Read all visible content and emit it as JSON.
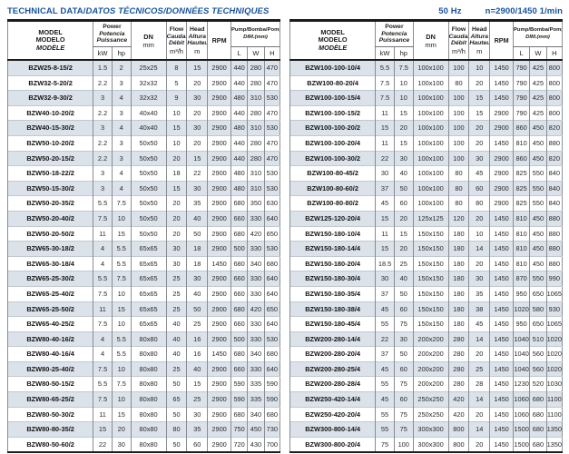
{
  "title": {
    "main": "TECHNICAL DATA/",
    "translations": "DATOS TÉCNICOS/DONNÉES TECHNIQUES",
    "frequency": "50 Hz",
    "speed": "n=2900/1450 1/min"
  },
  "colors": {
    "accent_blue": "#15549e",
    "row_shade": "#dbe2e9"
  },
  "table_header": {
    "model": [
      "MODEL",
      "MODELO",
      "MODÈLE"
    ],
    "power": [
      "Power",
      "Potencia",
      "Puissance"
    ],
    "dn": "DN",
    "flow": [
      "Flow",
      "Caudal",
      "Débit"
    ],
    "head": [
      "Head",
      "Altura",
      "Hauteur"
    ],
    "rpm": "RPM",
    "pump_dim": [
      "Pump/Bomba/Pompe",
      "DIM.(mm)"
    ],
    "units": {
      "kw": "kW",
      "hp": "hp",
      "mm": "mm",
      "flow": "m³/h",
      "head": "m",
      "l": "L",
      "w": "W",
      "h": "H"
    }
  },
  "left_table": {
    "rows": [
      [
        "BZW25-8-15/2",
        "1.5",
        "2",
        "25x25",
        "8",
        "15",
        "2900",
        "440",
        "280",
        "470"
      ],
      [
        "BZW32-5-20/2",
        "2.2",
        "3",
        "32x32",
        "5",
        "20",
        "2900",
        "440",
        "280",
        "470"
      ],
      [
        "BZW32-9-30/2",
        "3",
        "4",
        "32x32",
        "9",
        "30",
        "2900",
        "480",
        "310",
        "530"
      ],
      [
        "BZW40-10-20/2",
        "2.2",
        "3",
        "40x40",
        "10",
        "20",
        "2900",
        "440",
        "280",
        "470"
      ],
      [
        "BZW40-15-30/2",
        "3",
        "4",
        "40x40",
        "15",
        "30",
        "2900",
        "480",
        "310",
        "530"
      ],
      [
        "BZW50-10-20/2",
        "2.2",
        "3",
        "50x50",
        "10",
        "20",
        "2900",
        "440",
        "280",
        "470"
      ],
      [
        "BZW50-20-15/2",
        "2.2",
        "3",
        "50x50",
        "20",
        "15",
        "2900",
        "440",
        "280",
        "470"
      ],
      [
        "BZW50-18-22/2",
        "3",
        "4",
        "50x50",
        "18",
        "22",
        "2900",
        "480",
        "310",
        "530"
      ],
      [
        "BZW50-15-30/2",
        "3",
        "4",
        "50x50",
        "15",
        "30",
        "2900",
        "480",
        "310",
        "530"
      ],
      [
        "BZW50-20-35/2",
        "5.5",
        "7.5",
        "50x50",
        "20",
        "35",
        "2900",
        "680",
        "350",
        "630"
      ],
      [
        "BZW50-20-40/2",
        "7.5",
        "10",
        "50x50",
        "20",
        "40",
        "2900",
        "660",
        "330",
        "640"
      ],
      [
        "BZW50-20-50/2",
        "11",
        "15",
        "50x50",
        "20",
        "50",
        "2900",
        "680",
        "420",
        "650"
      ],
      [
        "BZW65-30-18/2",
        "4",
        "5.5",
        "65x65",
        "30",
        "18",
        "2900",
        "500",
        "330",
        "530"
      ],
      [
        "BZW65-30-18/4",
        "4",
        "5.5",
        "65x65",
        "30",
        "18",
        "1450",
        "680",
        "340",
        "680"
      ],
      [
        "BZW65-25-30/2",
        "5.5",
        "7.5",
        "65x65",
        "25",
        "30",
        "2900",
        "660",
        "330",
        "640"
      ],
      [
        "BZW65-25-40/2",
        "7.5",
        "10",
        "65x65",
        "25",
        "40",
        "2900",
        "660",
        "330",
        "640"
      ],
      [
        "BZW65-25-50/2",
        "11",
        "15",
        "65x65",
        "25",
        "50",
        "2900",
        "680",
        "420",
        "650"
      ],
      [
        "BZW65-40-25/2",
        "7.5",
        "10",
        "65x65",
        "40",
        "25",
        "2900",
        "660",
        "330",
        "640"
      ],
      [
        "BZW80-40-16/2",
        "4",
        "5.5",
        "80x80",
        "40",
        "16",
        "2900",
        "500",
        "330",
        "530"
      ],
      [
        "BZW80-40-16/4",
        "4",
        "5.5",
        "80x80",
        "40",
        "16",
        "1450",
        "680",
        "340",
        "680"
      ],
      [
        "BZW80-25-40/2",
        "7.5",
        "10",
        "80x80",
        "25",
        "40",
        "2900",
        "660",
        "330",
        "640"
      ],
      [
        "BZW80-50-15/2",
        "5.5",
        "7.5",
        "80x80",
        "50",
        "15",
        "2900",
        "590",
        "335",
        "590"
      ],
      [
        "BZW80-65-25/2",
        "7.5",
        "10",
        "80x80",
        "65",
        "25",
        "2900",
        "590",
        "335",
        "590"
      ],
      [
        "BZW80-50-30/2",
        "11",
        "15",
        "80x80",
        "50",
        "30",
        "2900",
        "680",
        "340",
        "680"
      ],
      [
        "BZW80-80-35/2",
        "15",
        "20",
        "80x80",
        "80",
        "35",
        "2900",
        "750",
        "450",
        "730"
      ],
      [
        "BZW80-50-60/2",
        "22",
        "30",
        "80x80",
        "50",
        "60",
        "2900",
        "720",
        "430",
        "700"
      ]
    ]
  },
  "right_table": {
    "rows": [
      [
        "BZW100-100-10/4",
        "5.5",
        "7.5",
        "100x100",
        "100",
        "10",
        "1450",
        "790",
        "425",
        "800"
      ],
      [
        "BZW100-80-20/4",
        "7.5",
        "10",
        "100x100",
        "80",
        "20",
        "1450",
        "790",
        "425",
        "800"
      ],
      [
        "BZW100-100-15/4",
        "7.5",
        "10",
        "100x100",
        "100",
        "15",
        "1450",
        "790",
        "425",
        "800"
      ],
      [
        "BZW100-100-15/2",
        "11",
        "15",
        "100x100",
        "100",
        "15",
        "2900",
        "790",
        "425",
        "800"
      ],
      [
        "BZW100-100-20/2",
        "15",
        "20",
        "100x100",
        "100",
        "20",
        "2900",
        "860",
        "450",
        "820"
      ],
      [
        "BZW100-100-20/4",
        "11",
        "15",
        "100x100",
        "100",
        "20",
        "1450",
        "810",
        "450",
        "880"
      ],
      [
        "BZW100-100-30/2",
        "22",
        "30",
        "100x100",
        "100",
        "30",
        "2900",
        "860",
        "450",
        "820"
      ],
      [
        "BZW100-80-45/2",
        "30",
        "40",
        "100x100",
        "80",
        "45",
        "2900",
        "825",
        "550",
        "840"
      ],
      [
        "BZW100-80-60/2",
        "37",
        "50",
        "100x100",
        "80",
        "60",
        "2900",
        "825",
        "550",
        "840"
      ],
      [
        "BZW100-80-80/2",
        "45",
        "60",
        "100x100",
        "80",
        "80",
        "2900",
        "825",
        "550",
        "840"
      ],
      [
        "BZW125-120-20/4",
        "15",
        "20",
        "125x125",
        "120",
        "20",
        "1450",
        "810",
        "450",
        "880"
      ],
      [
        "BZW150-180-10/4",
        "11",
        "15",
        "150x150",
        "180",
        "10",
        "1450",
        "810",
        "450",
        "880"
      ],
      [
        "BZW150-180-14/4",
        "15",
        "20",
        "150x150",
        "180",
        "14",
        "1450",
        "810",
        "450",
        "880"
      ],
      [
        "BZW150-180-20/4",
        "18.5",
        "25",
        "150x150",
        "180",
        "20",
        "1450",
        "810",
        "450",
        "880"
      ],
      [
        "BZW150-180-30/4",
        "30",
        "40",
        "150x150",
        "180",
        "30",
        "1450",
        "870",
        "550",
        "990"
      ],
      [
        "BZW150-180-35/4",
        "37",
        "50",
        "150x150",
        "180",
        "35",
        "1450",
        "950",
        "650",
        "1065"
      ],
      [
        "BZW150-180-38/4",
        "45",
        "60",
        "150x150",
        "180",
        "38",
        "1450",
        "1020",
        "580",
        "930"
      ],
      [
        "BZW150-180-45/4",
        "55",
        "75",
        "150x150",
        "180",
        "45",
        "1450",
        "950",
        "650",
        "1065"
      ],
      [
        "BZW200-280-14/4",
        "22",
        "30",
        "200x200",
        "280",
        "14",
        "1450",
        "1040",
        "510",
        "1020"
      ],
      [
        "BZW200-280-20/4",
        "37",
        "50",
        "200x200",
        "280",
        "20",
        "1450",
        "1040",
        "560",
        "1020"
      ],
      [
        "BZW200-280-25/4",
        "45",
        "60",
        "200x200",
        "280",
        "25",
        "1450",
        "1040",
        "560",
        "1020"
      ],
      [
        "BZW200-280-28/4",
        "55",
        "75",
        "200x200",
        "280",
        "28",
        "1450",
        "1230",
        "520",
        "1030"
      ],
      [
        "BZW250-420-14/4",
        "45",
        "60",
        "250x250",
        "420",
        "14",
        "1450",
        "1060",
        "680",
        "1100"
      ],
      [
        "BZW250-420-20/4",
        "55",
        "75",
        "250x250",
        "420",
        "20",
        "1450",
        "1060",
        "680",
        "1100"
      ],
      [
        "BZW300-800-14/4",
        "55",
        "75",
        "300x300",
        "800",
        "14",
        "1450",
        "1500",
        "680",
        "1350"
      ],
      [
        "BZW300-800-20/4",
        "75",
        "100",
        "300x300",
        "800",
        "20",
        "1450",
        "1500",
        "680",
        "1350"
      ]
    ]
  }
}
